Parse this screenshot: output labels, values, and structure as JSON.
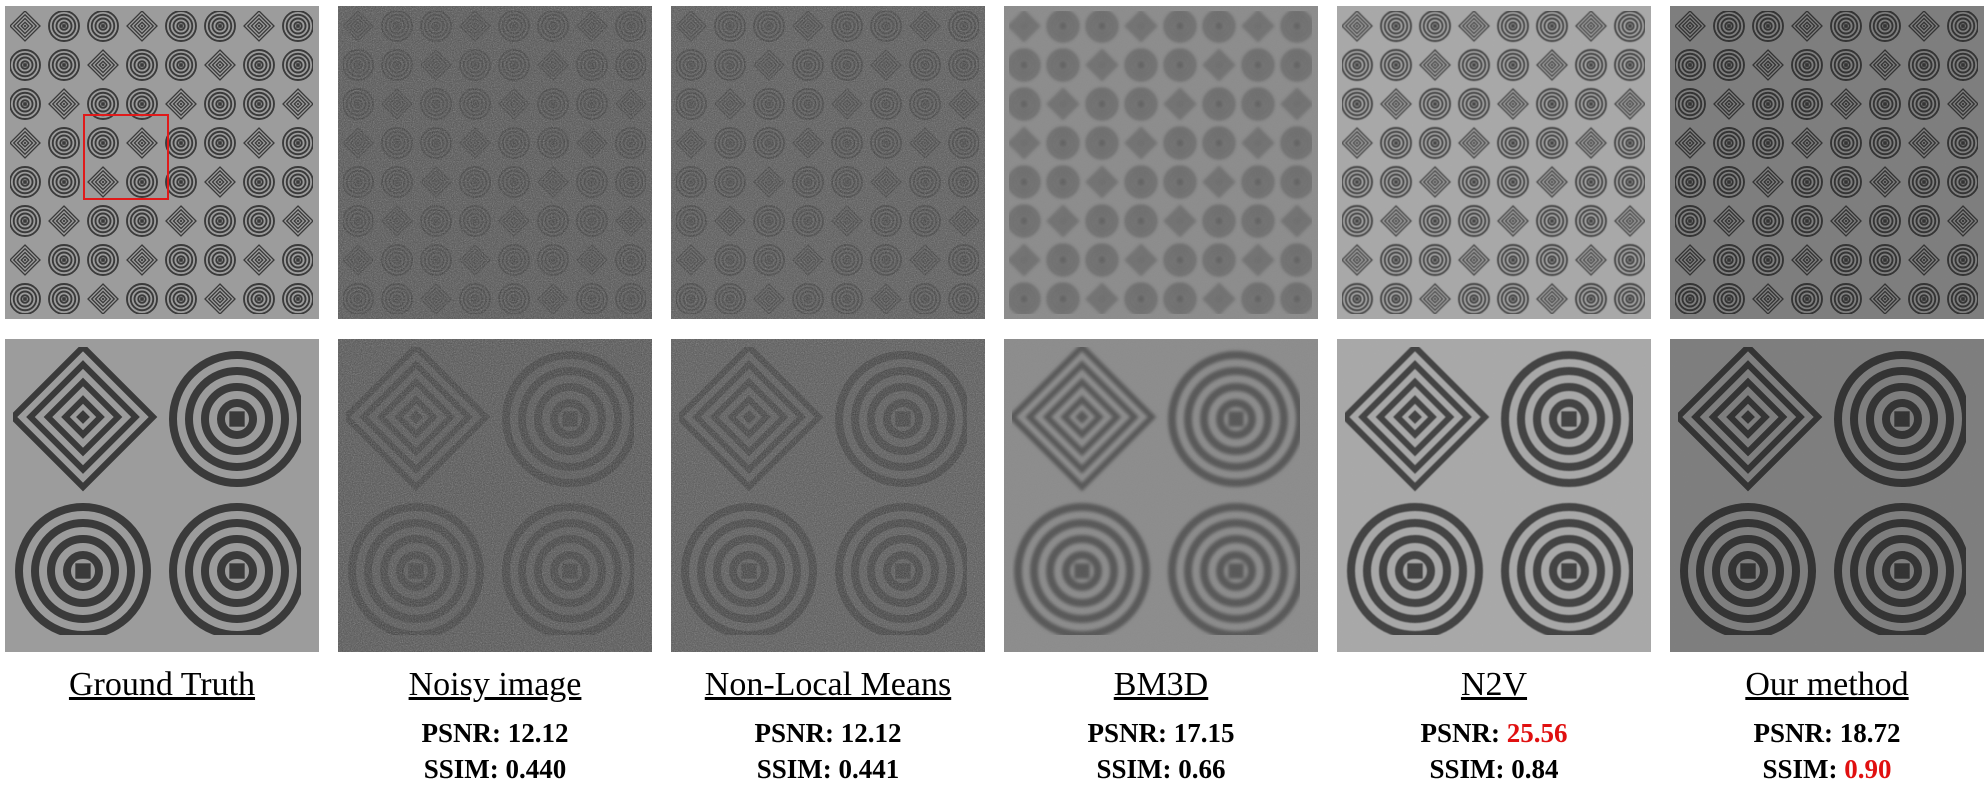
{
  "columns": [
    {
      "method": "Ground Truth",
      "psnr_label": "",
      "psnr_value": "",
      "ssim_label": "",
      "ssim_value": "",
      "best_psnr": false,
      "best_ssim": false,
      "style": "gt"
    },
    {
      "method": "Noisy image",
      "psnr_label": "PSNR: ",
      "psnr_value": "12.12",
      "ssim_label": "SSIM: ",
      "ssim_value": "0.440",
      "best_psnr": false,
      "best_ssim": false,
      "style": "noisy"
    },
    {
      "method": "Non-Local Means",
      "psnr_label": "PSNR: ",
      "psnr_value": "12.12",
      "ssim_label": "SSIM: ",
      "ssim_value": "0.441",
      "best_psnr": false,
      "best_ssim": false,
      "style": "nlm"
    },
    {
      "method": "BM3D",
      "psnr_label": "PSNR: ",
      "psnr_value": "17.15",
      "ssim_label": "SSIM: ",
      "ssim_value": "0.66",
      "best_psnr": false,
      "best_ssim": false,
      "style": "bm3d"
    },
    {
      "method": "N2V",
      "psnr_label": "PSNR: ",
      "psnr_value": "25.56",
      "ssim_label": "SSIM: ",
      "ssim_value": "0.84",
      "best_psnr": true,
      "best_ssim": false,
      "style": "n2v"
    },
    {
      "method": "Our method",
      "psnr_label": "PSNR: ",
      "psnr_value": "18.72",
      "ssim_label": "SSIM: ",
      "ssim_value": "0.90",
      "best_psnr": false,
      "best_ssim": true,
      "style": "ours"
    }
  ],
  "colors": {
    "highlight": "#e01010",
    "roi_box": "#e01a1a"
  }
}
